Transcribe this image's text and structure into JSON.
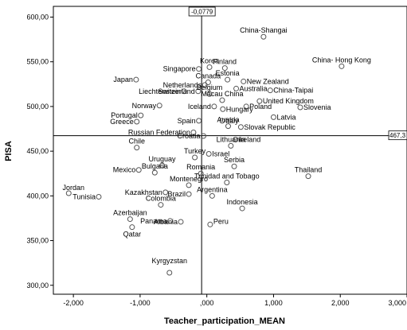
{
  "chart_data": {
    "type": "scatter",
    "xlabel": "Teacher_participation_MEAN",
    "ylabel": "PISA",
    "xlim": [
      -2.3,
      3.0
    ],
    "ylim": [
      290,
      612
    ],
    "x_ticks": [
      "-2,000",
      "-1,000",
      ",000",
      "1,000",
      "2,000",
      "3,000"
    ],
    "y_ticks": [
      "300,00",
      "350,00",
      "400,00",
      "450,00",
      "500,00",
      "550,00",
      "600,00"
    ],
    "ref_lines": {
      "x": -0.0779,
      "x_label": "-0,0779",
      "y": 467.3,
      "y_label": "467,3"
    },
    "point_color": "#555555",
    "points": [
      {
        "label": "China-Shangai",
        "x": 0.85,
        "y": 578
      },
      {
        "label": "Finland",
        "x": 0.27,
        "y": 543
      },
      {
        "label": "Korea",
        "x": 0.04,
        "y": 544
      },
      {
        "label": "China- Hong Kong",
        "x": 2.02,
        "y": 545
      },
      {
        "label": "Japan",
        "x": -1.06,
        "y": 530
      },
      {
        "label": "Singapore",
        "x": -0.12,
        "y": 542
      },
      {
        "label": "Estonia",
        "x": 0.31,
        "y": 530
      },
      {
        "label": "New Zealand",
        "x": 0.55,
        "y": 528
      },
      {
        "label": "Canada",
        "x": 0.02,
        "y": 527
      },
      {
        "label": "Netherlands",
        "x": -0.03,
        "y": 524
      },
      {
        "label": "Australia",
        "x": 0.44,
        "y": 520
      },
      {
        "label": "Liechtenstein",
        "x": -0.34,
        "y": 517
      },
      {
        "label": "Switzerland",
        "x": -0.13,
        "y": 517
      },
      {
        "label": "Belgium",
        "x": 0.04,
        "y": 514
      },
      {
        "label": "China-Taipai",
        "x": 0.95,
        "y": 518
      },
      {
        "label": "Macau China",
        "x": 0.23,
        "y": 507
      },
      {
        "label": "United Kingdom",
        "x": 0.79,
        "y": 506
      },
      {
        "label": "Norway",
        "x": -0.71,
        "y": 501
      },
      {
        "label": "Iceland",
        "x": 0.11,
        "y": 500
      },
      {
        "label": "Poland",
        "x": 0.59,
        "y": 500
      },
      {
        "label": "Slovenia",
        "x": 1.4,
        "y": 499
      },
      {
        "label": "Hungary",
        "x": 0.24,
        "y": 497
      },
      {
        "label": "Portugal",
        "x": -0.99,
        "y": 490
      },
      {
        "label": "Latvia",
        "x": 1.0,
        "y": 488
      },
      {
        "label": "Greece",
        "x": -1.05,
        "y": 483
      },
      {
        "label": "Spain",
        "x": -0.12,
        "y": 484
      },
      {
        "label": "Italy",
        "x": 0.23,
        "y": 484
      },
      {
        "label": "Slovak Republic",
        "x": 0.51,
        "y": 477
      },
      {
        "label": "Austria",
        "x": 0.32,
        "y": 478
      },
      {
        "label": "Russian Federation",
        "x": -0.2,
        "y": 471
      },
      {
        "label": "Croatia",
        "x": -0.05,
        "y": 467
      },
      {
        "label": "Ireland",
        "x": 0.43,
        "y": 463
      },
      {
        "label": "Lithuania",
        "x": 0.36,
        "y": 456
      },
      {
        "label": "Chile",
        "x": -1.05,
        "y": 454
      },
      {
        "label": "Israel",
        "x": 0.03,
        "y": 447
      },
      {
        "label": "Turkey",
        "x": -0.18,
        "y": 443
      },
      {
        "label": "Uruguay",
        "x": -0.67,
        "y": 434
      },
      {
        "label": "Serbia",
        "x": 0.41,
        "y": 433
      },
      {
        "label": "Mexico",
        "x": -1.02,
        "y": 429
      },
      {
        "label": "Bulgaria",
        "x": -0.78,
        "y": 426
      },
      {
        "label": "Romania",
        "x": -0.09,
        "y": 425
      },
      {
        "label": "Thailand",
        "x": 1.52,
        "y": 422
      },
      {
        "label": "Montenegro",
        "x": -0.27,
        "y": 412
      },
      {
        "label": "Trinidad and Tobago",
        "x": 0.3,
        "y": 415
      },
      {
        "label": "Jordan",
        "x": -2.07,
        "y": 403
      },
      {
        "label": "Kazakhstan",
        "x": -0.62,
        "y": 404
      },
      {
        "label": "Brazil",
        "x": -0.27,
        "y": 402
      },
      {
        "label": "Argentina",
        "x": 0.08,
        "y": 400
      },
      {
        "label": "Tunisia",
        "x": -1.62,
        "y": 399
      },
      {
        "label": "Colombia",
        "x": -0.69,
        "y": 390
      },
      {
        "label": "Indonesia",
        "x": 0.53,
        "y": 386
      },
      {
        "label": "Azerbaijan",
        "x": -1.15,
        "y": 374
      },
      {
        "label": "Panama",
        "x": -0.55,
        "y": 372
      },
      {
        "label": "Albania",
        "x": -0.39,
        "y": 371
      },
      {
        "label": "Peru",
        "x": 0.05,
        "y": 368
      },
      {
        "label": "Qatar",
        "x": -1.12,
        "y": 365
      },
      {
        "label": "Kyrgyzstan",
        "x": -0.56,
        "y": 314
      }
    ]
  }
}
